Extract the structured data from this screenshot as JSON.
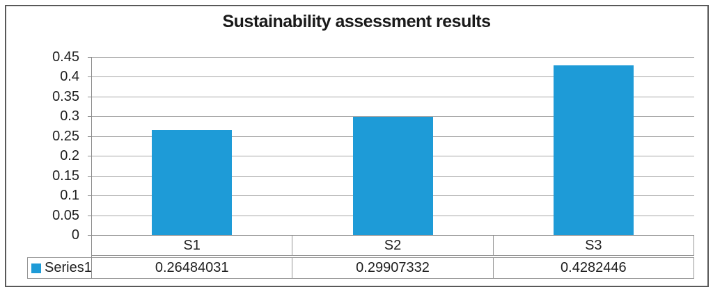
{
  "chart_data": {
    "type": "bar",
    "title": "Sustainability assessment results",
    "categories": [
      "S1",
      "S2",
      "S3"
    ],
    "series": [
      {
        "name": "Series1",
        "values": [
          0.26484031,
          0.29907332,
          0.4282446
        ]
      }
    ],
    "value_labels": [
      "0.26484031",
      "0.29907332",
      "0.4282446"
    ],
    "y_ticks": [
      "0.45",
      "0.4",
      "0.35",
      "0.3",
      "0.25",
      "0.2",
      "0.15",
      "0.1",
      "0.05",
      "0"
    ],
    "ylim": [
      0,
      0.45
    ],
    "xlabel": "",
    "ylabel": "",
    "grid": true,
    "data_table_shown": true,
    "legend_position": "data-table-left",
    "bar_gap_ratio": 0.4
  },
  "colors": {
    "bar": "#1E9BD7",
    "gridline": "#A6A6A6",
    "axis_line": "#8C8C8C",
    "table_border": "#969696",
    "outer_frame": "#595959",
    "title_text": "#1A1A1A",
    "body_text": "#1F1F1F",
    "background": "#FFFFFF"
  }
}
